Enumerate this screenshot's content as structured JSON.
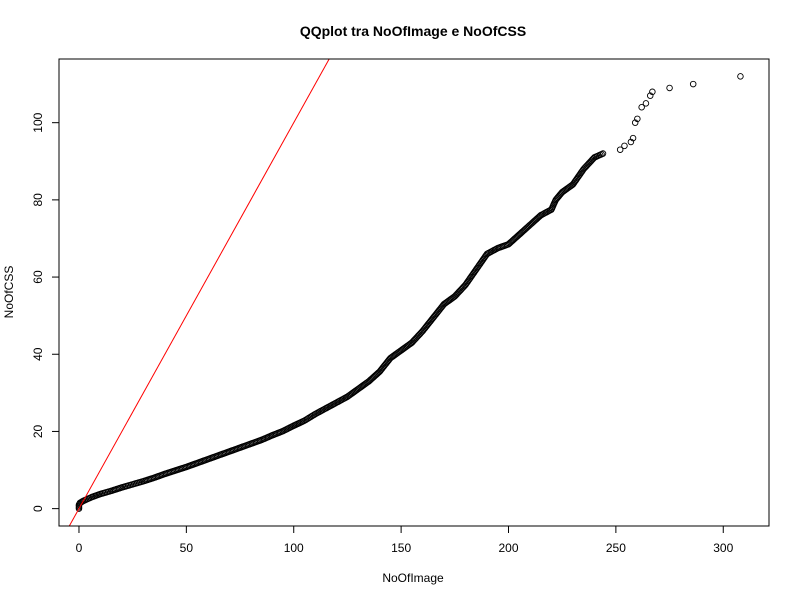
{
  "chart_data": {
    "type": "scatter",
    "title": "QQplot tra NoOfImage e NoOfCSS",
    "xlabel": "NoOfImage",
    "ylabel": "NoOfCSS",
    "xlim": [
      -9.3,
      321.3
    ],
    "ylim": [
      -4.5,
      116.5
    ],
    "xticks": [
      0,
      50,
      100,
      150,
      200,
      250,
      300
    ],
    "yticks": [
      0,
      20,
      40,
      60,
      80,
      100
    ],
    "grid": false,
    "legend": "none",
    "colors": {
      "points": "#000000",
      "reference_line": "#ff0000",
      "frame": "#000000"
    },
    "reference_line": {
      "intercept": 0,
      "slope": 1
    },
    "curve_knots": [
      [
        0,
        0
      ],
      [
        0,
        1
      ],
      [
        0.5,
        1.5
      ],
      [
        2,
        2
      ],
      [
        4,
        2.5
      ],
      [
        6,
        3
      ],
      [
        10,
        3.8
      ],
      [
        15,
        4.6
      ],
      [
        20,
        5.5
      ],
      [
        25,
        6.3
      ],
      [
        30,
        7.1
      ],
      [
        35,
        8.0
      ],
      [
        40,
        9.0
      ],
      [
        45,
        9.9
      ],
      [
        50,
        10.8
      ],
      [
        55,
        11.8
      ],
      [
        60,
        12.8
      ],
      [
        65,
        13.8
      ],
      [
        70,
        14.8
      ],
      [
        75,
        15.8
      ],
      [
        80,
        16.8
      ],
      [
        85,
        17.8
      ],
      [
        90,
        19.0
      ],
      [
        95,
        20.1
      ],
      [
        100,
        21.5
      ],
      [
        105,
        22.8
      ],
      [
        110,
        24.5
      ],
      [
        115,
        26.0
      ],
      [
        120,
        27.5
      ],
      [
        125,
        29.0
      ],
      [
        130,
        31.0
      ],
      [
        135,
        33.0
      ],
      [
        140,
        35.5
      ],
      [
        145,
        39.0
      ],
      [
        150,
        41.0
      ],
      [
        155,
        43.0
      ],
      [
        160,
        46.0
      ],
      [
        165,
        49.5
      ],
      [
        170,
        53.0
      ],
      [
        175,
        55.0
      ],
      [
        180,
        58.0
      ],
      [
        185,
        62.0
      ],
      [
        190,
        66.0
      ],
      [
        195,
        67.5
      ],
      [
        200,
        68.5
      ],
      [
        205,
        71.0
      ],
      [
        210,
        73.5
      ],
      [
        215,
        76.0
      ],
      [
        220,
        77.5
      ],
      [
        222,
        80.0
      ],
      [
        225,
        82.0
      ],
      [
        230,
        84.0
      ],
      [
        235,
        88.0
      ],
      [
        240,
        91.0
      ],
      [
        244,
        92.0
      ]
    ],
    "tail_points": [
      [
        252,
        93
      ],
      [
        254,
        94
      ],
      [
        257,
        95
      ],
      [
        258,
        96
      ],
      [
        259,
        100
      ],
      [
        260,
        101
      ],
      [
        262,
        104
      ],
      [
        264,
        105
      ],
      [
        266,
        107
      ],
      [
        267,
        108
      ],
      [
        275,
        109
      ],
      [
        286,
        110
      ],
      [
        308,
        112
      ]
    ]
  }
}
